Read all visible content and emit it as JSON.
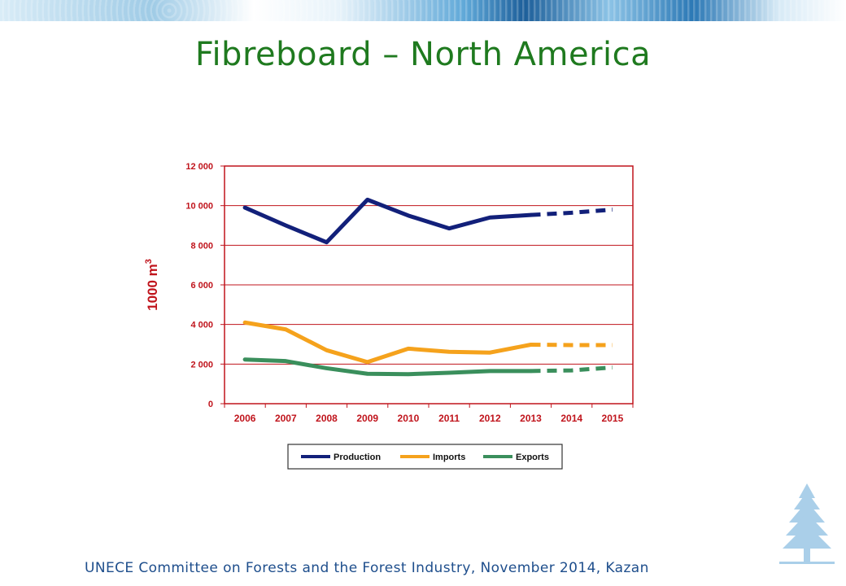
{
  "slide": {
    "title": "Fibreboard – North America",
    "footer": "UNECE Committee on Forests and the Forest Industry, November 2014, Kazan"
  },
  "chart_data": {
    "type": "line",
    "title": "",
    "xlabel": "",
    "ylabel": "1000 m",
    "ylabel_superscript": "3",
    "categories": [
      "2006",
      "2007",
      "2008",
      "2009",
      "2010",
      "2011",
      "2012",
      "2013",
      "2014",
      "2015"
    ],
    "ylim": [
      0,
      12000
    ],
    "yticks": [
      0,
      2000,
      4000,
      6000,
      8000,
      10000,
      12000
    ],
    "ytick_labels": [
      "0",
      "2 000",
      "4 000",
      "6 000",
      "8 000",
      "10 000",
      "12 000"
    ],
    "grid": true,
    "legend_position": "bottom",
    "forecast_from": "2013",
    "series": [
      {
        "name": "Production",
        "color": "#12207a",
        "values": [
          9900,
          9000,
          8150,
          10300,
          9500,
          8850,
          9400,
          9530,
          9640,
          9800
        ]
      },
      {
        "name": "Imports",
        "color": "#f5a21c",
        "values": [
          4100,
          3750,
          2700,
          2100,
          2780,
          2620,
          2580,
          2980,
          2960,
          2960
        ]
      },
      {
        "name": "Exports",
        "color": "#3a8f5c",
        "values": [
          2230,
          2150,
          1790,
          1510,
          1490,
          1560,
          1650,
          1650,
          1680,
          1830
        ]
      }
    ],
    "axis_color": "#c0141c"
  }
}
